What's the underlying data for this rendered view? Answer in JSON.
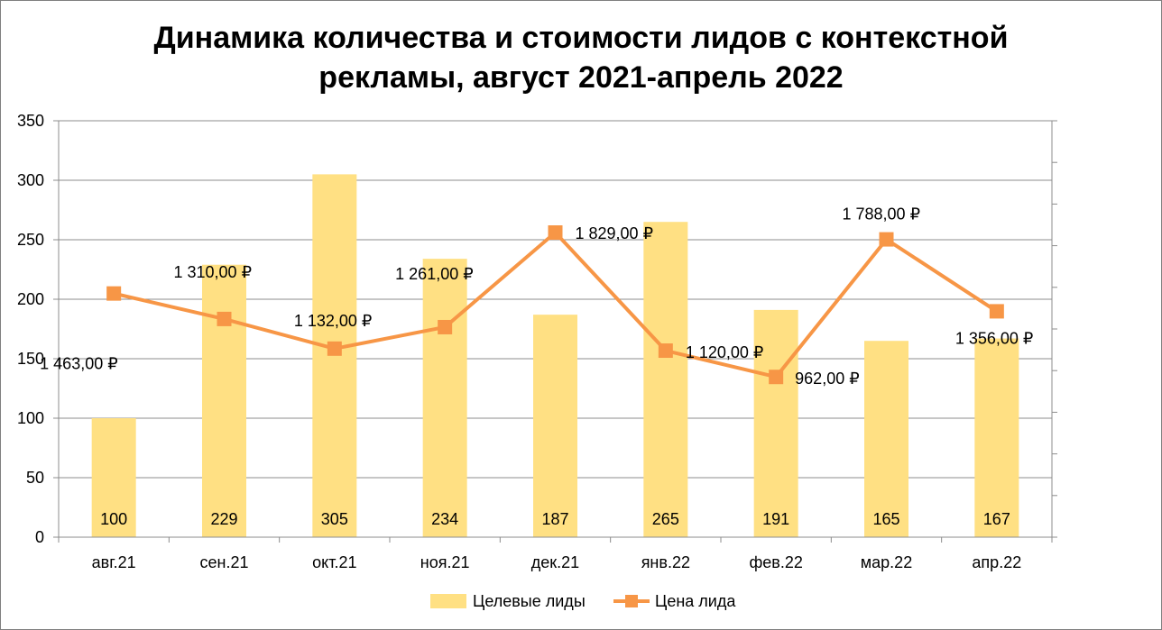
{
  "chart_data": {
    "type": "bar+line",
    "title_lines": [
      "Динамика количества и стоимости лидов с контекстной",
      "рекламы, август 2021-апрель 2022"
    ],
    "categories": [
      "авг.21",
      "сен.21",
      "окт.21",
      "ноя.21",
      "дек.21",
      "янв.22",
      "фев.22",
      "мар.22",
      "апр.22"
    ],
    "ylim": [
      0,
      350
    ],
    "y_ticks": [
      "0",
      "50",
      "100",
      "150",
      "200",
      "250",
      "300",
      "350"
    ],
    "y2_lim": [
      0,
      2500
    ],
    "grid": true,
    "legend_position": "bottom",
    "series": [
      {
        "name": "Целевые лиды",
        "type": "bar",
        "axis": "primary",
        "color": "#FFE083",
        "values": [
          100,
          229,
          305,
          234,
          187,
          265,
          191,
          165,
          167
        ],
        "labels": [
          "100",
          "229",
          "305",
          "234",
          "187",
          "265",
          "191",
          "165",
          "167"
        ]
      },
      {
        "name": "Цена лида",
        "type": "line",
        "axis": "secondary",
        "color": "#F79646",
        "values": [
          1463,
          1310,
          1132,
          1261,
          1829,
          1120,
          962,
          1788,
          1356
        ],
        "labels": [
          "1 463,00 ₽",
          "1 310,00 ₽",
          "1 132,00 ₽",
          "1 261,00 ₽",
          "1 829,00 ₽",
          "1 120,00 ₽",
          "962,00 ₽",
          "1 788,00 ₽",
          "1 356,00 ₽"
        ]
      }
    ]
  }
}
